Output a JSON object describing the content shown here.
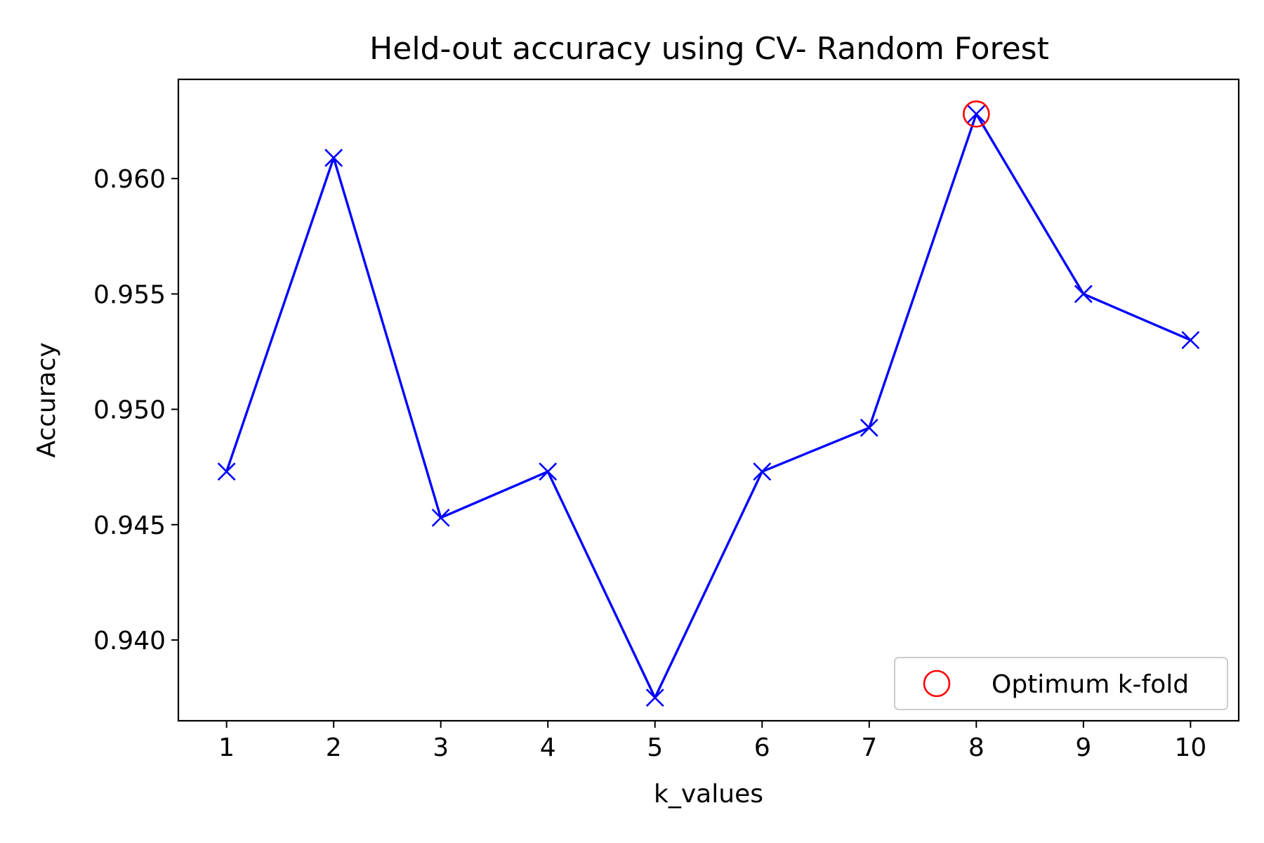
{
  "chart_data": {
    "type": "line",
    "title": "Held-out accuracy using CV- Random Forest",
    "xlabel": "k_values",
    "ylabel": "Accuracy",
    "x": [
      1,
      2,
      3,
      4,
      5,
      6,
      7,
      8,
      9,
      10
    ],
    "series": [
      {
        "values": [
          0.9473,
          0.9609,
          0.9453,
          0.9473,
          0.9375,
          0.9473,
          0.9492,
          0.9628,
          0.955,
          0.953
        ],
        "color": "#0000ff",
        "marker": "x"
      }
    ],
    "highlight": {
      "name": "Optimum k-fold",
      "x": 8,
      "y": 0.9628,
      "color": "#ff0000",
      "marker": "open-circle"
    },
    "xticks": [
      "1",
      "2",
      "3",
      "4",
      "5",
      "6",
      "7",
      "8",
      "9",
      "10"
    ],
    "yticks": [
      "0.940",
      "0.945",
      "0.950",
      "0.955",
      "0.960"
    ],
    "ytick_values": [
      0.94,
      0.945,
      0.95,
      0.955,
      0.96
    ],
    "xlim": [
      0.55,
      10.45
    ],
    "ylim": [
      0.9365,
      0.9643
    ],
    "legend": {
      "position": "lower-right",
      "entries": [
        "Optimum k-fold"
      ]
    },
    "grid": false
  }
}
